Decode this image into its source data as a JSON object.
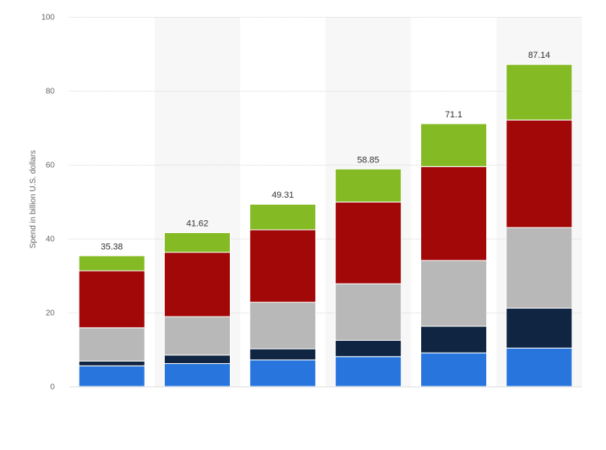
{
  "chart_data": {
    "type": "bar",
    "stacked": true,
    "xlabel": "",
    "ylabel": "Spend in billion U.S. dollars",
    "ylim": [
      0,
      100
    ],
    "yticks": [
      "0",
      "20",
      "40",
      "60",
      "80",
      "100"
    ],
    "categories": [
      "",
      "",
      "",
      "",
      "",
      ""
    ],
    "totals": [
      "35.38",
      "41.62",
      "49.31",
      "58.85",
      "71.1",
      "87.14"
    ],
    "series": [
      {
        "color": "#2876dd",
        "values": [
          5.6,
          6.2,
          7.2,
          8.1,
          9.1,
          10.4
        ]
      },
      {
        "color": "#0f2541",
        "values": [
          1.3,
          2.3,
          3.0,
          4.4,
          7.2,
          10.8
        ]
      },
      {
        "color": "#b8b8b8",
        "values": [
          9.0,
          10.4,
          12.6,
          15.3,
          17.8,
          21.8
        ]
      },
      {
        "color": "#a20808",
        "values": [
          15.4,
          17.4,
          19.6,
          22.1,
          25.4,
          29.1
        ]
      },
      {
        "color": "#84ba24",
        "values": [
          4.08,
          5.32,
          6.91,
          8.95,
          11.6,
          15.04
        ]
      }
    ],
    "grid": true,
    "legend": "none"
  }
}
